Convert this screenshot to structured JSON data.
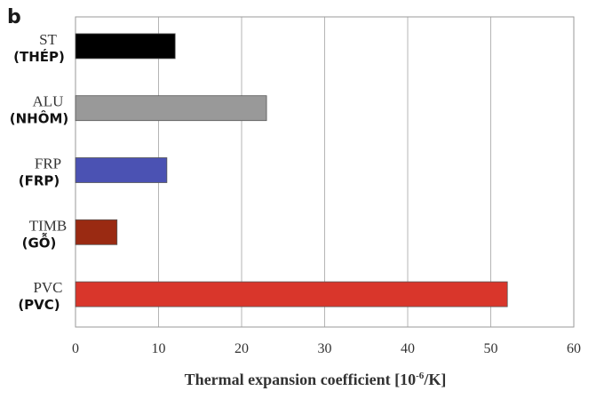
{
  "panel_label": "b",
  "chart_data": {
    "type": "bar",
    "orientation": "horizontal",
    "categories": [
      "ST",
      "ALU",
      "FRP",
      "TIMB",
      "PVC"
    ],
    "category_translations": [
      "(THÉP)",
      "(NHÔM)",
      "(FRP)",
      "(GỖ)",
      "(PVC)"
    ],
    "values": [
      12,
      23,
      11,
      5,
      52
    ],
    "colors": [
      "#000000",
      "#999999",
      "#4b52b3",
      "#9a2a12",
      "#d9362b"
    ],
    "xlabel": {
      "main": "Thermal expansion coefficient [10",
      "superscript": "-6",
      "tail": "/K]"
    },
    "ylabel": "",
    "xlim": [
      0,
      60
    ],
    "xticks": [
      "0",
      "10",
      "20",
      "30",
      "40",
      "50",
      "60"
    ],
    "grid": "vertical"
  }
}
